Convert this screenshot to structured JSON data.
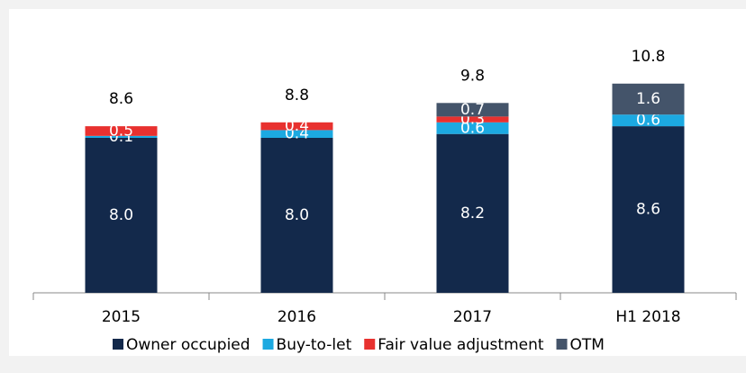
{
  "chart_data": {
    "type": "stacked_bar",
    "categories": [
      "2015",
      "2016",
      "2017",
      "H1 2018"
    ],
    "series": [
      {
        "name": "Owner occupied",
        "color": "#13294b",
        "values": [
          8.0,
          8.0,
          8.2,
          8.6
        ],
        "value_labels": [
          "8.0",
          "8.0",
          "8.2",
          "8.6"
        ]
      },
      {
        "name": "Buy-to-let",
        "color": "#1ca9e1",
        "values": [
          0.1,
          0.4,
          0.6,
          0.6
        ],
        "value_labels": [
          "0.1",
          "0.4",
          "0.6",
          "0.6"
        ]
      },
      {
        "name": "Fair value adjustment",
        "color": "#e8312f",
        "values": [
          0.5,
          0.4,
          0.3,
          null
        ],
        "value_labels": [
          "0.5",
          "0.4",
          "0.3",
          null
        ]
      },
      {
        "name": "OTM",
        "color": "#44546a",
        "values": [
          null,
          null,
          0.7,
          1.6
        ],
        "value_labels": [
          null,
          null,
          "0.7",
          "1.6"
        ]
      }
    ],
    "totals": [
      8.6,
      8.8,
      9.8,
      10.8
    ],
    "ylim": [
      0,
      12
    ]
  }
}
